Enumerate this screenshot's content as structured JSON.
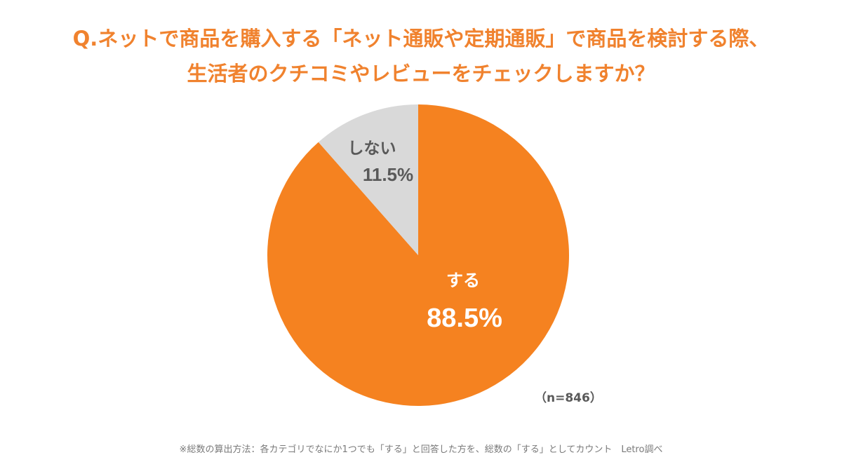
{
  "title": {
    "line1": "Q.ネットで商品を購入する「ネット通販や定期通販」で商品を検討する際、",
    "line2": "生活者のクチコミやレビューをチェックしますか？"
  },
  "sample_size": "（n=846）",
  "footnote": "※総数の算出方法：各カテゴリでなにか1つでも「する」と回答した方を、総数の「する」としてカウント　Letro調べ",
  "colors": {
    "title": "#F0822E",
    "slice_yes": "#F58220",
    "slice_no": "#D9D9D9",
    "label_yes": "#FFFFFF",
    "label_no": "#595959"
  },
  "chart_data": {
    "type": "pie",
    "title": "",
    "start_angle_deg": 0,
    "direction": "clockwise",
    "slices": [
      {
        "label": "する",
        "value": 88.5,
        "value_label": "88.5%",
        "color": "#F58220"
      },
      {
        "label": "しない",
        "value": 11.5,
        "value_label": "11.5%",
        "color": "#D9D9D9"
      }
    ]
  }
}
